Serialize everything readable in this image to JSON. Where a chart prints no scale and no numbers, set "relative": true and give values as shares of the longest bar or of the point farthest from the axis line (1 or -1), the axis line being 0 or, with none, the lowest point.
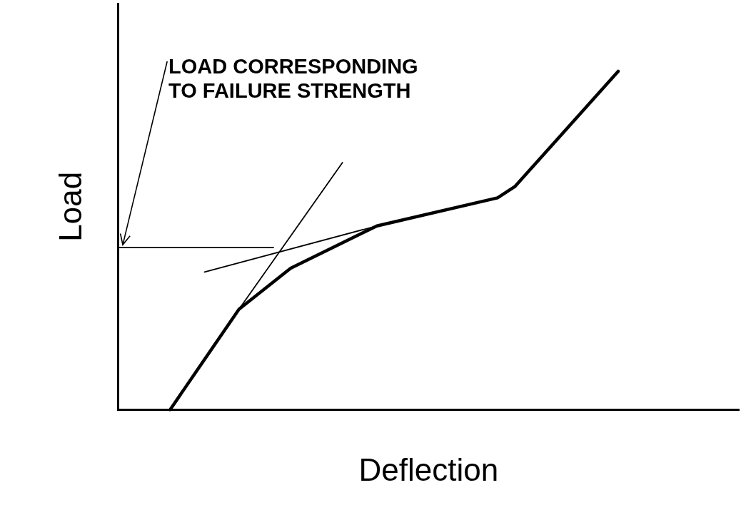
{
  "chart_data": {
    "type": "line",
    "relative": true,
    "xlabel": "Deflection",
    "ylabel": "Load",
    "annotations": [
      "LOAD CORRESPONDING\nTO FAILURE STRENGTH"
    ],
    "categories": [
      null,
      null,
      null,
      null,
      null,
      null,
      null,
      null,
      null,
      null,
      null,
      null,
      null,
      null,
      null,
      null,
      null,
      null,
      null,
      null,
      null,
      null,
      null,
      null,
      null,
      null,
      null,
      null,
      null,
      null,
      null,
      null,
      null,
      null,
      null,
      null,
      null
    ],
    "series": [
      {
        "color": "#000000",
        "values": [
          null,
          null,
          null,
          0,
          null,
          null,
          null,
          0.297,
          null,
          null,
          0.418,
          null,
          null,
          null,
          null,
          0.543,
          null,
          null,
          null,
          null,
          null,
          null,
          0.626,
          0.659,
          null,
          null,
          null,
          null,
          null,
          1,
          null,
          null,
          null,
          null,
          null,
          null,
          null
        ]
      },
      {
        "color": "#000000",
        "values": [
          null,
          null,
          null,
          null,
          null,
          null,
          null,
          0.297,
          null,
          null,
          null,
          null,
          null,
          0.73,
          null,
          null,
          null,
          null,
          null,
          null,
          null,
          null,
          null,
          null,
          null,
          null,
          null,
          null,
          null,
          null,
          null,
          null,
          null,
          null,
          null,
          null,
          null
        ]
      },
      {
        "color": "#000000",
        "values": [
          0.479,
          null,
          null,
          null,
          null,
          null,
          null,
          null,
          null,
          0.479,
          null,
          null,
          null,
          null,
          null,
          null,
          null,
          null,
          null,
          null,
          null,
          null,
          null,
          null,
          null,
          null,
          null,
          null,
          null,
          null,
          null,
          null,
          null,
          null,
          null,
          null,
          null
        ]
      },
      {
        "color": "#000000",
        "values": [
          null,
          null,
          null,
          null,
          null,
          0.407,
          null,
          null,
          null,
          null,
          null,
          null,
          null,
          null,
          null,
          0.543,
          null,
          null,
          null,
          null,
          null,
          null,
          null,
          null,
          null,
          null,
          null,
          null,
          null,
          null,
          null,
          null,
          null,
          null,
          null,
          null,
          null
        ]
      }
    ]
  }
}
